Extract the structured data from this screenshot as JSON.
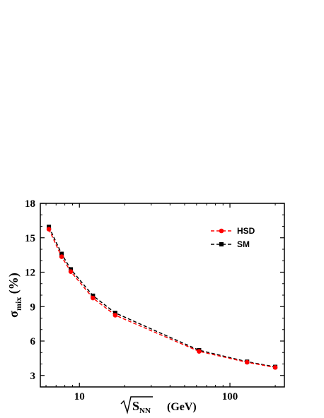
{
  "chart_data": {
    "type": "line",
    "x_scale": "log",
    "xlim": [
      5.5,
      230
    ],
    "ylim": [
      2,
      18
    ],
    "x_ticks": [
      10,
      100
    ],
    "x_tick_labels": [
      "10",
      "100"
    ],
    "y_ticks": [
      3,
      6,
      9,
      12,
      15,
      18
    ],
    "y_tick_labels": [
      "3",
      "6",
      "9",
      "12",
      "15",
      "18"
    ],
    "ylabel": {
      "main": "σ",
      "sub": "mix",
      "paren": "(%)"
    },
    "xlabel": {
      "sqrt": "S",
      "sub": "NN",
      "unit": "(GeV)"
    },
    "legend_position": "top-right",
    "grid": false,
    "series": [
      {
        "name": "HSD",
        "color": "#ff0000",
        "marker": "circle",
        "line": "dashed",
        "x": [
          6.27,
          7.62,
          8.77,
          12.3,
          17.3,
          62.4,
          130,
          200
        ],
        "y": [
          15.75,
          13.35,
          12.05,
          9.75,
          8.25,
          5.1,
          4.15,
          3.7
        ]
      },
      {
        "name": "SM",
        "color": "#000000",
        "marker": "square",
        "line": "dashed",
        "x": [
          6.27,
          7.62,
          8.77,
          12.3,
          17.3,
          62.4,
          130,
          200
        ],
        "y": [
          15.95,
          13.6,
          12.25,
          9.95,
          8.45,
          5.2,
          4.2,
          3.75
        ]
      }
    ]
  }
}
